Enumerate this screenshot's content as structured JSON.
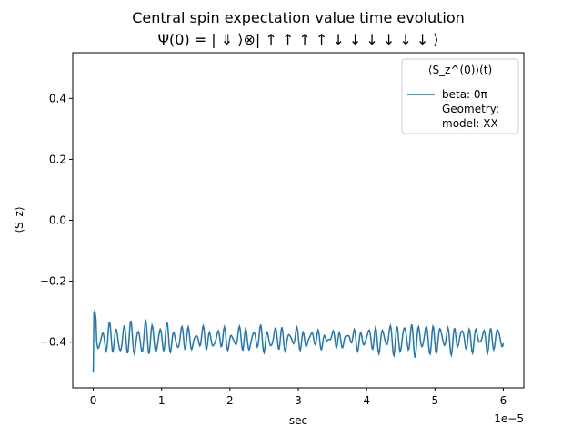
{
  "chart_data": {
    "type": "line",
    "title": "Central spin expectation value time evolution",
    "subtitle": "Ψ(0) = | ⇓ ⟩⊗| ↑ ↑ ↑ ↑ ↓ ↓ ↓ ↓ ↓ ↓ ⟩",
    "xlabel": "sec",
    "ylabel": "⟨S_z⟩",
    "x_offset_label": "1e−5",
    "xlim": [
      -0.3,
      6.3
    ],
    "ylim": [
      -0.55,
      0.55
    ],
    "x_scale_note": "x tick values are multiplied by 1e-5",
    "xticks": [
      0,
      1,
      2,
      3,
      4,
      5,
      6
    ],
    "xtick_labels": [
      "0",
      "1",
      "2",
      "3",
      "4",
      "5",
      "6"
    ],
    "yticks": [
      0.4,
      0.2,
      0.0,
      -0.2,
      -0.4
    ],
    "ytick_labels": [
      "0.4",
      "0.2",
      "0.0",
      "−0.2",
      "−0.4"
    ],
    "grid": false,
    "legend": {
      "placement": "top-right",
      "title": "⟨S_z^(0)⟩(t)",
      "entries": [
        "beta: 0π",
        "Geometry:",
        "model: XX"
      ]
    },
    "series": [
      {
        "color": "#1f77b4",
        "x_range": [
          0,
          6
        ],
        "samples": 600,
        "start_value": -0.5,
        "mean_value": -0.39,
        "oscillation_amplitude": 0.03
      }
    ]
  }
}
